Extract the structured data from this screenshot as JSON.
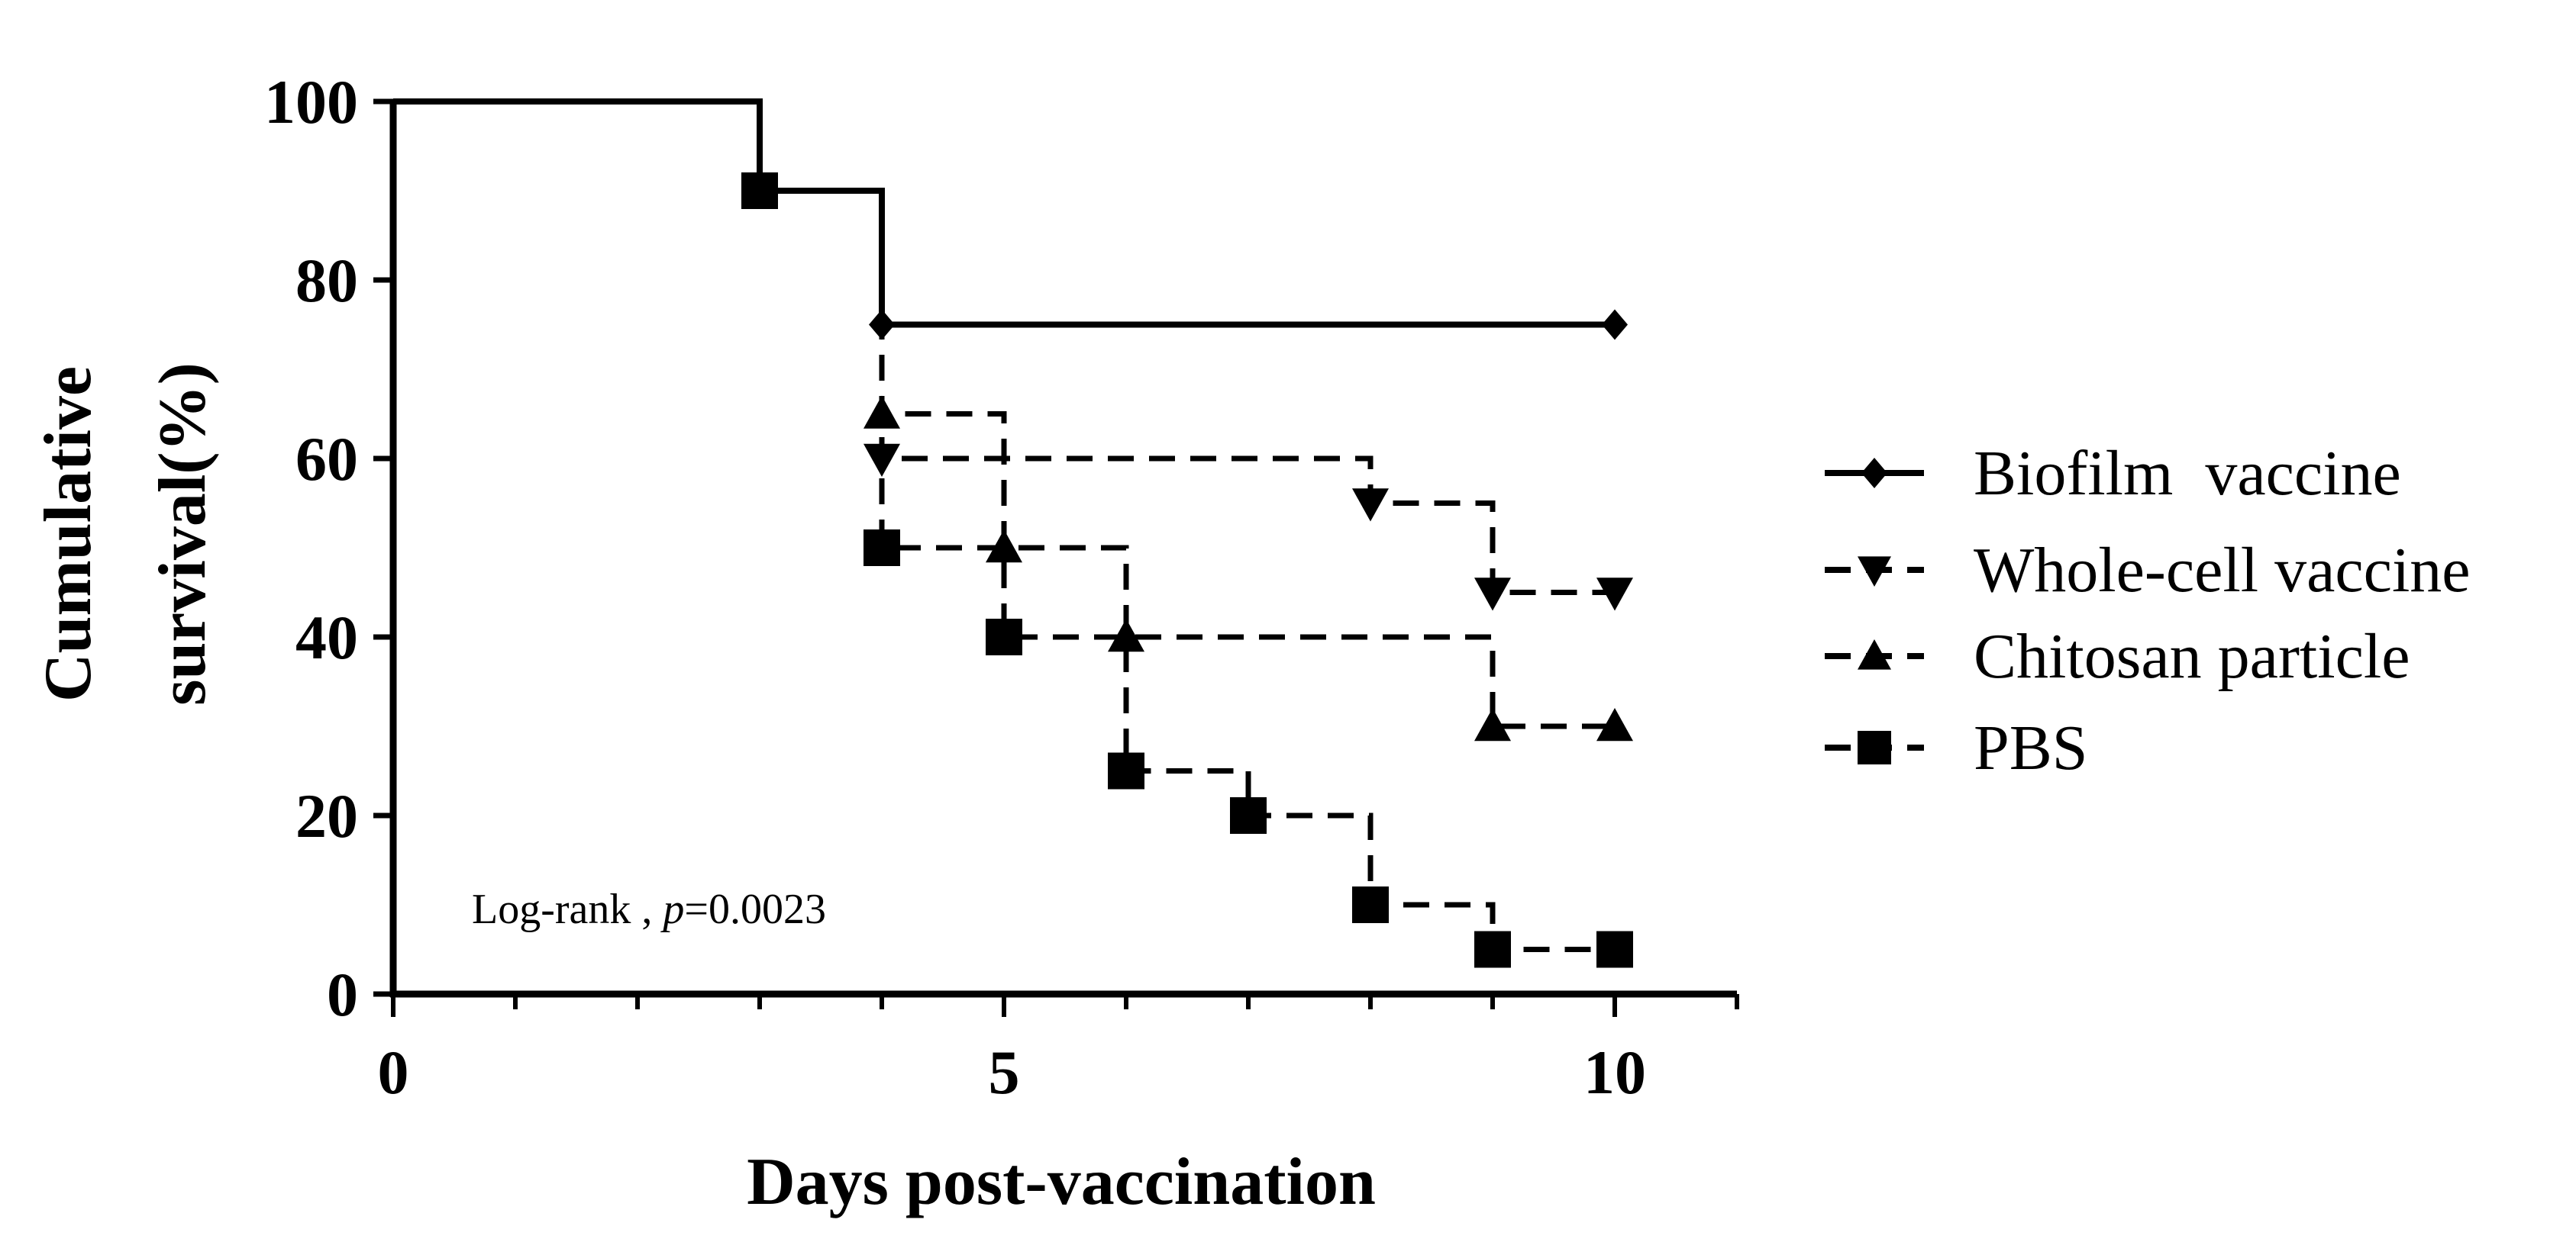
{
  "chart_data": {
    "type": "line",
    "step": true,
    "xlabel": "Days post-vaccination",
    "ylabel_lines": [
      "Cumulative",
      "survival(%)"
    ],
    "xlim": [
      0,
      11
    ],
    "ylim": [
      0,
      100
    ],
    "x_ticks": [
      0,
      5,
      10
    ],
    "y_ticks": [
      0,
      20,
      40,
      60,
      80,
      100
    ],
    "annotation": {
      "prefix": "Log-rank , ",
      "italic": "p",
      "suffix": "=0.0023"
    },
    "legend_position": "right",
    "series": [
      {
        "name": "Biofilm  vaccine",
        "marker": "diamond",
        "dash": "solid",
        "start": [
          0,
          100
        ],
        "steps": [
          [
            3,
            90
          ],
          [
            4,
            75
          ]
        ],
        "end_x": 10,
        "points": [
          [
            4,
            75
          ],
          [
            10,
            75
          ]
        ]
      },
      {
        "name": "Whole-cell vaccine",
        "marker": "triangle-down",
        "dash": "dashed",
        "start": [
          0,
          100
        ],
        "steps": [
          [
            3,
            90
          ],
          [
            4,
            60
          ],
          [
            8,
            55
          ],
          [
            9,
            45
          ]
        ],
        "end_x": 10,
        "points": [
          [
            4,
            60
          ],
          [
            8,
            55
          ],
          [
            9,
            45
          ],
          [
            10,
            45
          ]
        ]
      },
      {
        "name": "Chitosan particle",
        "marker": "triangle-up",
        "dash": "dashed",
        "start": [
          0,
          100
        ],
        "steps": [
          [
            3,
            90
          ],
          [
            4,
            65
          ],
          [
            5,
            50
          ],
          [
            6,
            40
          ],
          [
            9,
            30
          ]
        ],
        "end_x": 10,
        "points": [
          [
            4,
            65
          ],
          [
            5,
            50
          ],
          [
            6,
            40
          ],
          [
            9,
            30
          ],
          [
            10,
            30
          ]
        ]
      },
      {
        "name": "PBS",
        "marker": "square",
        "dash": "dashed",
        "start": [
          0,
          100
        ],
        "steps": [
          [
            3,
            90
          ],
          [
            4,
            50
          ],
          [
            5,
            40
          ],
          [
            6,
            25
          ],
          [
            7,
            20
          ],
          [
            8,
            10
          ],
          [
            9,
            5
          ]
        ],
        "end_x": 10,
        "points": [
          [
            3,
            90
          ],
          [
            4,
            50
          ],
          [
            5,
            40
          ],
          [
            6,
            25
          ],
          [
            7,
            20
          ],
          [
            8,
            10
          ],
          [
            9,
            5
          ],
          [
            10,
            5
          ]
        ]
      }
    ]
  }
}
